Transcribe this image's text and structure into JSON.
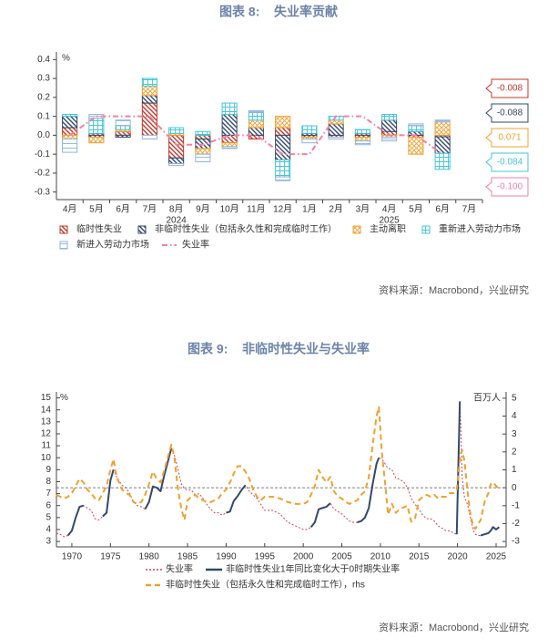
{
  "chart_data": [
    {
      "type": "bar",
      "stacked": true,
      "title": "图表 8:    失业率贡献",
      "unit": "%",
      "categories": [
        "4月",
        "5月",
        "6月",
        "7月",
        "8月",
        "9月",
        "10月",
        "11月",
        "12月",
        "1月",
        "2月",
        "3月",
        "4月",
        "5月",
        "6月",
        "7月"
      ],
      "years": [
        "2024",
        "2025"
      ],
      "ylim": [
        -0.34,
        0.44
      ],
      "yticks": [
        0.4,
        0.3,
        0.2,
        0.1,
        {
          "value": 0,
          "label": "0.0"
        },
        -0.1,
        -0.2,
        -0.3
      ],
      "series": [
        {
          "name": "临时性失业",
          "color": "#c0392b",
          "pattern": "diagonal",
          "callout": true,
          "values": [
            0.04,
            0.01,
            0.02,
            0.17,
            -0.12,
            -0.02,
            -0.04,
            -0.02,
            0.04,
            -0.01,
            -0.01,
            0.01,
            0.02,
            -0.01,
            -0.008,
            null
          ]
        },
        {
          "name": "非临时性失业（包括永久性和完成临时工作）",
          "color": "#34486b",
          "pattern": "diagonal",
          "callout": true,
          "values": [
            0.06,
            -0.01,
            -0.01,
            0.04,
            -0.03,
            -0.05,
            0.11,
            0.04,
            -0.13,
            0.01,
            0.06,
            -0.01,
            0.06,
            0.02,
            -0.088,
            null
          ]
        },
        {
          "name": "主动离职",
          "color": "#f0a030",
          "pattern": "cross",
          "callout": true,
          "values": [
            -0.02,
            -0.03,
            0.01,
            0.05,
            0.01,
            -0.03,
            -0.02,
            0.04,
            0.06,
            -0.01,
            0.02,
            -0.02,
            -0.01,
            -0.09,
            0.071,
            null
          ]
        },
        {
          "name": "重新进入劳动力市场",
          "color": "#45c6d6",
          "pattern": "grid",
          "callout": true,
          "values": [
            0.01,
            0.08,
            0.02,
            0.04,
            0.03,
            0.02,
            0.06,
            0.04,
            -0.09,
            0.04,
            0.02,
            0.02,
            0.03,
            0.03,
            -0.084,
            null
          ]
        },
        {
          "name": "新进入劳动力市场",
          "color": "#8fb4dc",
          "pattern": "horizontal",
          "values": [
            -0.07,
            0.02,
            0.03,
            -0.02,
            -0.01,
            -0.04,
            -0.01,
            0.01,
            -0.02,
            -0.02,
            -0.01,
            -0.02,
            -0.02,
            0.01,
            0.009,
            null
          ]
        },
        {
          "name": "失业率",
          "type": "line",
          "color": "#ee82a4",
          "dash": "dashdot",
          "width": 2,
          "callout": true,
          "values": [
            0,
            0.1,
            0.1,
            0.1,
            -0.05,
            -0.05,
            0,
            0,
            -0.1,
            -0.1,
            0.1,
            0.1,
            0,
            0,
            -0.1,
            null
          ],
          "value_labels": [
            null,
            null,
            null,
            null,
            null,
            null,
            null,
            null,
            null,
            null,
            null,
            null,
            null,
            null,
            "-0.100",
            null
          ]
        }
      ],
      "source": "资料来源：Macrobond，兴业研究"
    },
    {
      "type": "line",
      "title": "图表 9:    非临时性失业与失业率",
      "unit": "%",
      "y2unit": "百万人",
      "x": [
        1968,
        1968.5,
        1969,
        1969.5,
        1970,
        1970.5,
        1971,
        1971.5,
        1972,
        1972.5,
        1973,
        1973.5,
        1974,
        1974.5,
        1975,
        1975.4,
        1975.8,
        1976.5,
        1977,
        1977.5,
        1978,
        1978.5,
        1979,
        1979.5,
        1980,
        1980.5,
        1981,
        1981.5,
        1982,
        1982.5,
        1982.9,
        1983.3,
        1983.7,
        1984.2,
        1984.6,
        1985,
        1985.5,
        1986,
        1986.5,
        1987,
        1987.5,
        1988,
        1988.5,
        1989,
        1989.5,
        1990,
        1990.5,
        1991,
        1991.5,
        1992,
        1992.5,
        1993,
        1993.5,
        1994,
        1994.5,
        1995,
        1996,
        1997,
        1998,
        1999,
        2000,
        2000.5,
        2001,
        2001.5,
        2002,
        2002.5,
        2003,
        2003.5,
        2004,
        2004.5,
        2005,
        2005.5,
        2006,
        2006.5,
        2007,
        2007.5,
        2008,
        2008.5,
        2009,
        2009.5,
        2009.8,
        2010.2,
        2010.6,
        2011,
        2011.5,
        2012,
        2012.5,
        2013,
        2013.5,
        2014,
        2014.5,
        2015,
        2015.5,
        2016,
        2016.5,
        2017,
        2017.5,
        2018,
        2018.5,
        2019,
        2019.5,
        2019.9,
        2020.3,
        2020.4,
        2020.6,
        2020.9,
        2021.3,
        2021.6,
        2022,
        2022.3,
        2022.7,
        2023,
        2023.5,
        2024,
        2024.3,
        2024.6,
        2025,
        2025.4
      ],
      "xlim": [
        1968,
        2026.3
      ],
      "xticks": [
        1970,
        1975,
        1980,
        1985,
        1990,
        1995,
        2000,
        2005,
        2010,
        2015,
        2020,
        2025
      ],
      "ylim": [
        2.55,
        15.5
      ],
      "yticks": [
        3,
        4,
        5,
        6,
        7,
        8,
        9,
        10,
        11,
        12,
        13,
        14,
        15
      ],
      "y2lim": [
        -3.3,
        5.35
      ],
      "y2ticks": [
        -3,
        -2,
        -1,
        0,
        1,
        2,
        3,
        4,
        5
      ],
      "zero_line": true,
      "series": [
        {
          "name": "失业率",
          "color": "#d24456",
          "dash": "dotted",
          "width": 1,
          "values": [
            3.7,
            3.6,
            3.4,
            3.5,
            3.9,
            5.0,
            5.9,
            6.0,
            5.8,
            5.6,
            4.9,
            4.8,
            5.1,
            5.4,
            8.1,
            9.0,
            8.4,
            7.7,
            7.5,
            7.0,
            6.3,
            6.0,
            5.9,
            5.7,
            6.3,
            7.6,
            7.5,
            7.2,
            8.6,
            9.8,
            10.8,
            10.2,
            9.2,
            7.8,
            7.4,
            7.3,
            7.3,
            6.9,
            7.0,
            6.6,
            6.1,
            5.7,
            5.4,
            5.4,
            5.2,
            5.4,
            5.5,
            6.4,
            6.8,
            7.3,
            7.7,
            7.2,
            6.9,
            6.6,
            6.1,
            5.6,
            5.6,
            5.3,
            4.6,
            4.3,
            4.0,
            4.0,
            4.2,
            4.6,
            5.7,
            5.8,
            5.9,
            6.2,
            5.7,
            5.5,
            5.3,
            5.0,
            4.7,
            4.6,
            4.6,
            4.7,
            5.0,
            5.8,
            7.8,
            9.5,
            10.0,
            9.9,
            9.5,
            9.1,
            9.0,
            8.3,
            8.2,
            8.0,
            7.5,
            6.6,
            6.1,
            5.7,
            5.2,
            4.9,
            4.9,
            4.7,
            4.3,
            4.1,
            3.9,
            3.9,
            3.7,
            3.6,
            14.7,
            13.0,
            8.4,
            6.7,
            6.1,
            5.2,
            4.0,
            3.6,
            3.5,
            3.5,
            3.6,
            3.7,
            3.9,
            4.2,
            4.0,
            4.2
          ]
        },
        {
          "name": "非临时性失业1年同比变化大于0时期失业率",
          "color": "#34486b",
          "dash": "solid",
          "width": 2,
          "values": [
            null,
            null,
            null,
            3.5,
            3.9,
            5.0,
            5.9,
            6.0,
            null,
            null,
            null,
            null,
            5.1,
            5.4,
            8.1,
            9.0,
            null,
            null,
            null,
            null,
            null,
            null,
            null,
            5.7,
            6.3,
            7.6,
            7.5,
            7.2,
            8.6,
            9.8,
            10.8,
            null,
            null,
            null,
            null,
            null,
            null,
            null,
            null,
            null,
            null,
            null,
            null,
            null,
            null,
            5.4,
            5.5,
            6.4,
            6.8,
            7.3,
            7.7,
            null,
            null,
            null,
            null,
            null,
            null,
            null,
            null,
            null,
            null,
            null,
            4.2,
            4.6,
            5.7,
            5.8,
            5.9,
            6.2,
            null,
            null,
            null,
            null,
            null,
            null,
            4.6,
            4.7,
            5.0,
            5.8,
            7.8,
            9.5,
            10.0,
            null,
            null,
            null,
            null,
            null,
            null,
            null,
            null,
            null,
            null,
            null,
            null,
            null,
            null,
            null,
            null,
            null,
            null,
            null,
            null,
            3.6,
            14.7,
            null,
            null,
            null,
            null,
            null,
            null,
            null,
            null,
            3.5,
            3.6,
            3.7,
            3.9,
            4.2,
            4.0,
            4.2
          ]
        },
        {
          "name": "非临时性失业（包括永久性和完成临时工作），rhs",
          "axis": "y2",
          "color": "#f0a030",
          "dash": "dashed",
          "width": 2,
          "values": [
            -0.4,
            -0.5,
            -0.6,
            -0.5,
            -0.3,
            0.1,
            0.5,
            0.3,
            -0.1,
            -0.3,
            -0.6,
            -0.7,
            -0.3,
            0.1,
            1.0,
            1.6,
            0.6,
            -0.1,
            -0.3,
            -0.4,
            -0.8,
            -0.9,
            -0.8,
            -0.4,
            0.2,
            0.9,
            0.5,
            0.3,
            1.0,
            1.8,
            2.4,
            1.7,
            0.1,
            -1.2,
            -1.8,
            -0.7,
            -0.5,
            -0.4,
            -0.6,
            -0.7,
            -0.8,
            -0.8,
            -0.7,
            -0.6,
            -0.3,
            -0.1,
            0.3,
            0.8,
            1.2,
            1.2,
            0.9,
            0.5,
            -0.1,
            -0.5,
            -0.7,
            -0.5,
            -0.5,
            -0.6,
            -0.8,
            -0.9,
            -0.9,
            -0.8,
            -0.4,
            0.1,
            1.0,
            0.6,
            0.3,
            0.6,
            -0.2,
            -0.5,
            -0.6,
            -0.8,
            -0.9,
            -0.8,
            -0.7,
            -0.4,
            -0.2,
            0.6,
            2.4,
            4.0,
            4.5,
            1.9,
            0.3,
            -1.5,
            -0.9,
            -1.4,
            -1.2,
            -1.1,
            -1.0,
            -1.9,
            -1.7,
            -0.7,
            -0.5,
            -0.4,
            -0.5,
            -0.4,
            -0.6,
            -0.5,
            -0.5,
            -0.3,
            -0.3,
            -0.1,
            1.5,
            1.9,
            2.1,
            1.5,
            -0.2,
            -1.3,
            -2.1,
            -2.3,
            -2.0,
            -1.8,
            -0.8,
            -0.3,
            0.2,
            0.3,
            0.1,
            -0.1
          ]
        }
      ],
      "source": "资料来源：Macrobond，兴业研究"
    }
  ]
}
